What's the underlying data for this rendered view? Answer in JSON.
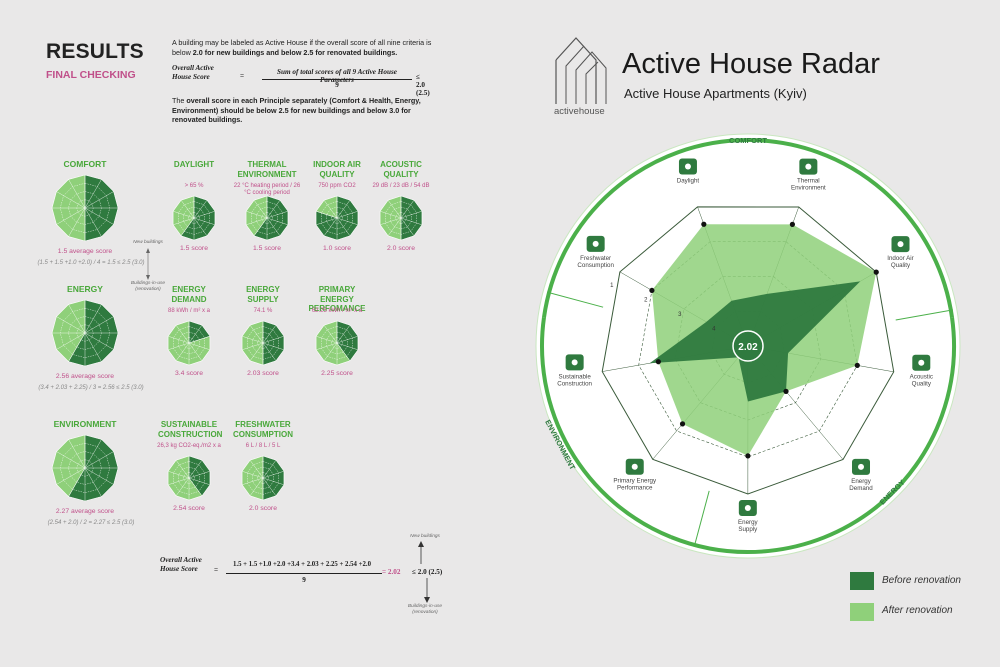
{
  "colors": {
    "dark": "#2f7a3f",
    "light": "#8fd07a",
    "accent": "#4bb04a",
    "pink": "#c0508a"
  },
  "header": {
    "title": "RESULTS",
    "subtitle": "FINAL CHECKING",
    "intro_line1": "A building may be labeled as Active House if the overall score of all nine criteria is below",
    "intro_bold1": "2.0",
    "intro_mid": "for new buildings and below 2.5 for renovated buildings.",
    "formula_lhs": "Overall Active House Score",
    "formula_eq": "=",
    "formula_num": "Sum of total scores of all 9 Active House Parameters",
    "formula_den": "9",
    "formula_rhs": "≤ 2.0 (2.5)",
    "intro2_p1": "The",
    "intro2_p2": "overall score in each Principle separately (Comfort & Health, Energy, Environment) should be below",
    "intro2_p3": "2.5 for new buildings and below 3.0 for renovated buildings."
  },
  "principles": [
    {
      "name": "COMFORT",
      "score_text": "1.5 average score",
      "calc": "(1.5 + 1.5 +1.0 +2.0) / 4 = 1.5  ≤ 2.5  (3.0)",
      "dark_fraction": 0.47
    },
    {
      "name": "ENERGY",
      "score_text": "2.56 average score",
      "calc": "(3.4 + 2.03 + 2.25) / 3 = 2.56  ≤ 2.5  (3.0)",
      "dark_fraction": 0.56
    },
    {
      "name": "ENVIRONMENT",
      "score_text": "2.27 average score",
      "calc": "(2.54 + 2.0) / 2 = 2.27  ≤ 2.5  (3.0)",
      "dark_fraction": 0.55
    }
  ],
  "notes": {
    "new": "New buildings",
    "inuse": "Buildings-in-use (renovation)"
  },
  "params": [
    {
      "title": "DAYLIGHT",
      "value": "> 65 %",
      "score": "1.5 score",
      "fraction": 0.62
    },
    {
      "title": "THERMAL ENVIRONMENT",
      "value": "22 °C heating period / 26 °C cooling period",
      "score": "1.5 score",
      "fraction": 0.62
    },
    {
      "title": "INDOOR AIR QUALITY",
      "value": "750 ppm CO2",
      "score": "1.0 score",
      "fraction": 0.75
    },
    {
      "title": "ACOUSTIC QUALITY",
      "value": "29 dB / 23 dB / 54 dB",
      "score": "2.0 score",
      "fraction": 0.5
    },
    {
      "title": "ENERGY DEMAND",
      "value": "88 kWh / m² x a",
      "score": "3.4 score",
      "fraction": 0.15
    },
    {
      "title": "ENERGY SUPPLY",
      "value": "74.1  %",
      "score": "2.03 score",
      "fraction": 0.49
    },
    {
      "title": "PRIMARY ENERGY PERFOMANCE",
      "value": "62.25  kWh / m² x a",
      "score": "2.25 score",
      "fraction": 0.44
    },
    {
      "title": "SUSTAINABLE CONSTRUCTION",
      "value": "26,3 kg CO2-eq./m2 x a",
      "score": "2.54 score",
      "fraction": 0.36
    },
    {
      "title": "FRESHWATER CONSUMPTION",
      "value": "6 L / 8 L / 5 L",
      "score": "2.0 score",
      "fraction": 0.5
    }
  ],
  "overall": {
    "lhs": "Overall Active House Score",
    "eq": "=",
    "num": "1.5 + 1.5 +1.0 +2.0 +3.4 + 2.03 + 2.25 + 2.54 +2.0",
    "den": "9",
    "result": "= 2.02",
    "rhs": "≤  2.0  (2.5)",
    "new": "New buildings",
    "inuse": "Buildings-in-use (renovation)"
  },
  "radar": {
    "title": "Active House Radar",
    "subtitle": "Active House Apartments (Kyiv)",
    "logo": "activehouse",
    "center_score": "2.02",
    "sectors": {
      "comfort": "COMFORT",
      "energy": "ENERGY",
      "environment": "ENVIRONMENT"
    },
    "axes": [
      "Thermal Environment",
      "Indoor Air Quality",
      "Acoustic Quality",
      "Energy Demand",
      "Energy Supply",
      "Primary Energy Performance",
      "Sustainable Construction",
      "Freshwater Consumption",
      "Daylight"
    ],
    "ring_labels": [
      "1",
      "2",
      "3",
      "4"
    ],
    "legend": [
      {
        "label": "Before renovation"
      },
      {
        "label": "After renovation"
      }
    ]
  },
  "chart_data": {
    "type": "radar",
    "categories": [
      "Thermal Environment",
      "Indoor Air Quality",
      "Acoustic Quality",
      "Energy Demand",
      "Energy Supply",
      "Primary Energy Performance",
      "Sustainable Construction",
      "Freshwater Consumption",
      "Daylight"
    ],
    "series": [
      {
        "name": "Before renovation",
        "values": [
          3.5,
          1.5,
          3.9,
          3.4,
          3.5,
          4.6,
          2.3,
          3.7,
          3.7
        ]
      },
      {
        "name": "After renovation",
        "values": [
          1.5,
          1.0,
          2.0,
          3.4,
          2.03,
          2.25,
          2.54,
          2.0,
          1.5
        ]
      }
    ],
    "scale": [
      1,
      5
    ]
  }
}
